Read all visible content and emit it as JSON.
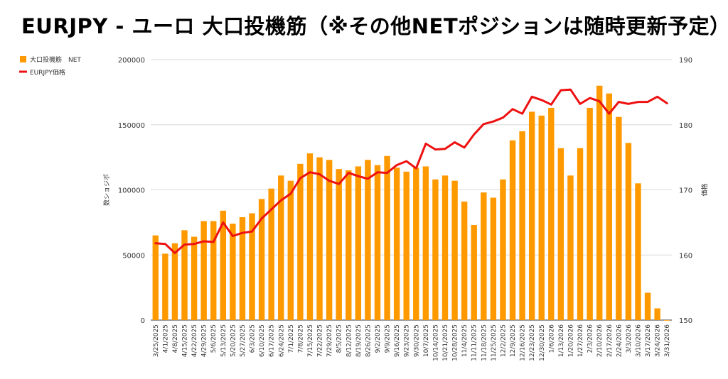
{
  "chart_data": {
    "type": "bar+line",
    "title": "EURJPY - ユーロ 大口投機筋（※その他NETポジションは随時更新予定）",
    "ylabel_left": "数ショジポ",
    "ylabel_right": "価格",
    "ylim_left": [
      0,
      200000
    ],
    "ylim_right": [
      150,
      190
    ],
    "yticks_left": [
      "0",
      "50000",
      "100000",
      "150000",
      "200000"
    ],
    "yticks_right": [
      "150",
      "160",
      "170",
      "180",
      "190"
    ],
    "legend": {
      "position": "top-left",
      "bar_label": "大口投機筋　NET",
      "line_label": "EURJPY価格"
    },
    "colors": {
      "bar": "#ff9900",
      "line": "#ee1111",
      "grid": "#d9d9d9"
    },
    "categories": [
      "3/25/2025",
      "4/1/2025",
      "4/8/2025",
      "4/15/2025",
      "4/22/2025",
      "4/29/2025",
      "5/6/2025",
      "5/13/2025",
      "5/20/2025",
      "5/27/2025",
      "6/3/2025",
      "6/10/2025",
      "6/17/2025",
      "6/24/2025",
      "7/1/2025",
      "7/8/2025",
      "7/15/2025",
      "7/22/2025",
      "7/29/2025",
      "8/5/2025",
      "8/12/2025",
      "8/19/2025",
      "8/26/2025",
      "9/2/2025",
      "9/9/2025",
      "9/16/2025",
      "9/23/2025",
      "9/30/2025",
      "10/7/2025",
      "10/14/2025",
      "10/21/2025",
      "10/28/2025",
      "11/4/2025",
      "11/11/2025",
      "11/18/2025",
      "11/25/2025",
      "12/2/2025",
      "12/9/2025",
      "12/16/2025",
      "12/23/2025",
      "12/30/2025",
      "1/6/2026",
      "1/13/2026",
      "1/20/2026",
      "1/27/2026",
      "2/3/2026",
      "2/10/2026",
      "2/17/2026",
      "2/24/2026",
      "3/3/2026",
      "3/10/2026",
      "3/17/2026",
      "3/24/2026",
      "3/31/2026"
    ],
    "series": [
      {
        "name": "大口投機筋　NET",
        "axis": "left",
        "kind": "bar",
        "values": [
          65000,
          51000,
          59000,
          69000,
          64000,
          76000,
          76000,
          84000,
          74000,
          79000,
          82000,
          93000,
          101000,
          111000,
          107000,
          120000,
          128000,
          125000,
          123000,
          116000,
          115000,
          118000,
          123000,
          119000,
          126000,
          117000,
          114000,
          117000,
          118000,
          108000,
          111000,
          107000,
          91000,
          73000,
          98000,
          94000,
          108000,
          138000,
          145000,
          160000,
          157000,
          163000,
          132000,
          111000,
          132000,
          163000,
          180000,
          174000,
          156000,
          136000,
          105000,
          21000,
          9000,
          0
        ]
      },
      {
        "name": "EURJPY価格",
        "axis": "right",
        "kind": "line",
        "values": [
          161.8,
          161.7,
          160.3,
          161.6,
          161.7,
          162.1,
          162.0,
          165.0,
          162.9,
          163.4,
          163.6,
          165.6,
          167.0,
          168.4,
          169.4,
          171.8,
          172.7,
          172.4,
          171.4,
          170.9,
          172.6,
          172.1,
          171.7,
          172.7,
          172.6,
          173.8,
          174.4,
          173.3,
          177.1,
          176.2,
          176.3,
          177.3,
          176.5,
          178.5,
          180.1,
          180.5,
          181.1,
          182.4,
          181.7,
          184.3,
          183.8,
          183.1,
          185.3,
          185.4,
          183.2,
          184.1,
          183.6,
          181.7,
          183.5,
          183.2,
          183.5,
          183.5,
          184.3,
          183.3
        ]
      }
    ]
  }
}
